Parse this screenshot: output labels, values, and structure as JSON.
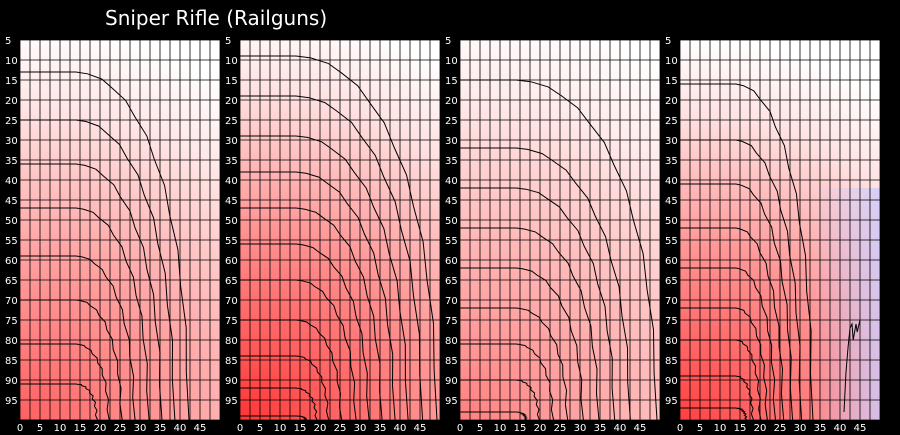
{
  "title": "Sniper Rifle (Railguns)",
  "colors": {
    "background": "#000000",
    "high": "#ff2a2a",
    "low": "#ffffff",
    "negative": "#c8c8ff",
    "grid": "#000000",
    "contour": "#000000"
  },
  "chart_data": [
    {
      "type": "heatmap",
      "x_ticks": [
        0,
        5,
        10,
        15,
        20,
        25,
        30,
        35,
        40,
        45
      ],
      "y_ticks": [
        5,
        10,
        15,
        20,
        25,
        30,
        35,
        40,
        45,
        50,
        55,
        60,
        65,
        70,
        75,
        80,
        85,
        90,
        95
      ],
      "xlim": [
        0,
        50
      ],
      "ylim": [
        5,
        100
      ],
      "intensity": 0.75,
      "reach": 42,
      "contour_levels": [
        13,
        25,
        36,
        47,
        59,
        70,
        81,
        91,
        100
      ],
      "grid": true
    },
    {
      "type": "heatmap",
      "x_ticks": [
        0,
        5,
        10,
        15,
        20,
        25,
        30,
        35,
        40,
        45
      ],
      "y_ticks": [
        5,
        10,
        15,
        20,
        25,
        30,
        35,
        40,
        45,
        50,
        55,
        60,
        65,
        70,
        75,
        80,
        85,
        90,
        95
      ],
      "xlim": [
        0,
        50
      ],
      "ylim": [
        5,
        100
      ],
      "intensity": 0.95,
      "reach": 49,
      "contour_levels": [
        9,
        19,
        29,
        38,
        47,
        56,
        65,
        75,
        84,
        92,
        99
      ],
      "grid": true
    },
    {
      "type": "heatmap",
      "x_ticks": [
        0,
        5,
        10,
        15,
        20,
        25,
        30,
        35,
        40,
        45
      ],
      "y_ticks": [
        5,
        10,
        15,
        20,
        25,
        30,
        35,
        40,
        45,
        50,
        55,
        60,
        65,
        70,
        75,
        80,
        85,
        90,
        95
      ],
      "xlim": [
        0,
        50
      ],
      "ylim": [
        5,
        100
      ],
      "intensity": 0.6,
      "reach": 49,
      "contour_levels": [
        15,
        32,
        42,
        52,
        62,
        72,
        81,
        90,
        98
      ],
      "grid": true
    },
    {
      "type": "heatmap",
      "x_ticks": [
        0,
        5,
        10,
        15,
        20,
        25,
        30,
        35,
        40,
        45
      ],
      "y_ticks": [
        5,
        10,
        15,
        20,
        25,
        30,
        35,
        40,
        45,
        50,
        55,
        60,
        65,
        70,
        75,
        80,
        85,
        90,
        95
      ],
      "xlim": [
        0,
        50
      ],
      "ylim": [
        5,
        100
      ],
      "intensity": 0.9,
      "reach": 33,
      "contour_levels": [
        16,
        30,
        41,
        52,
        62,
        72,
        80,
        89,
        97
      ],
      "negative_region": true,
      "grid": true
    }
  ]
}
